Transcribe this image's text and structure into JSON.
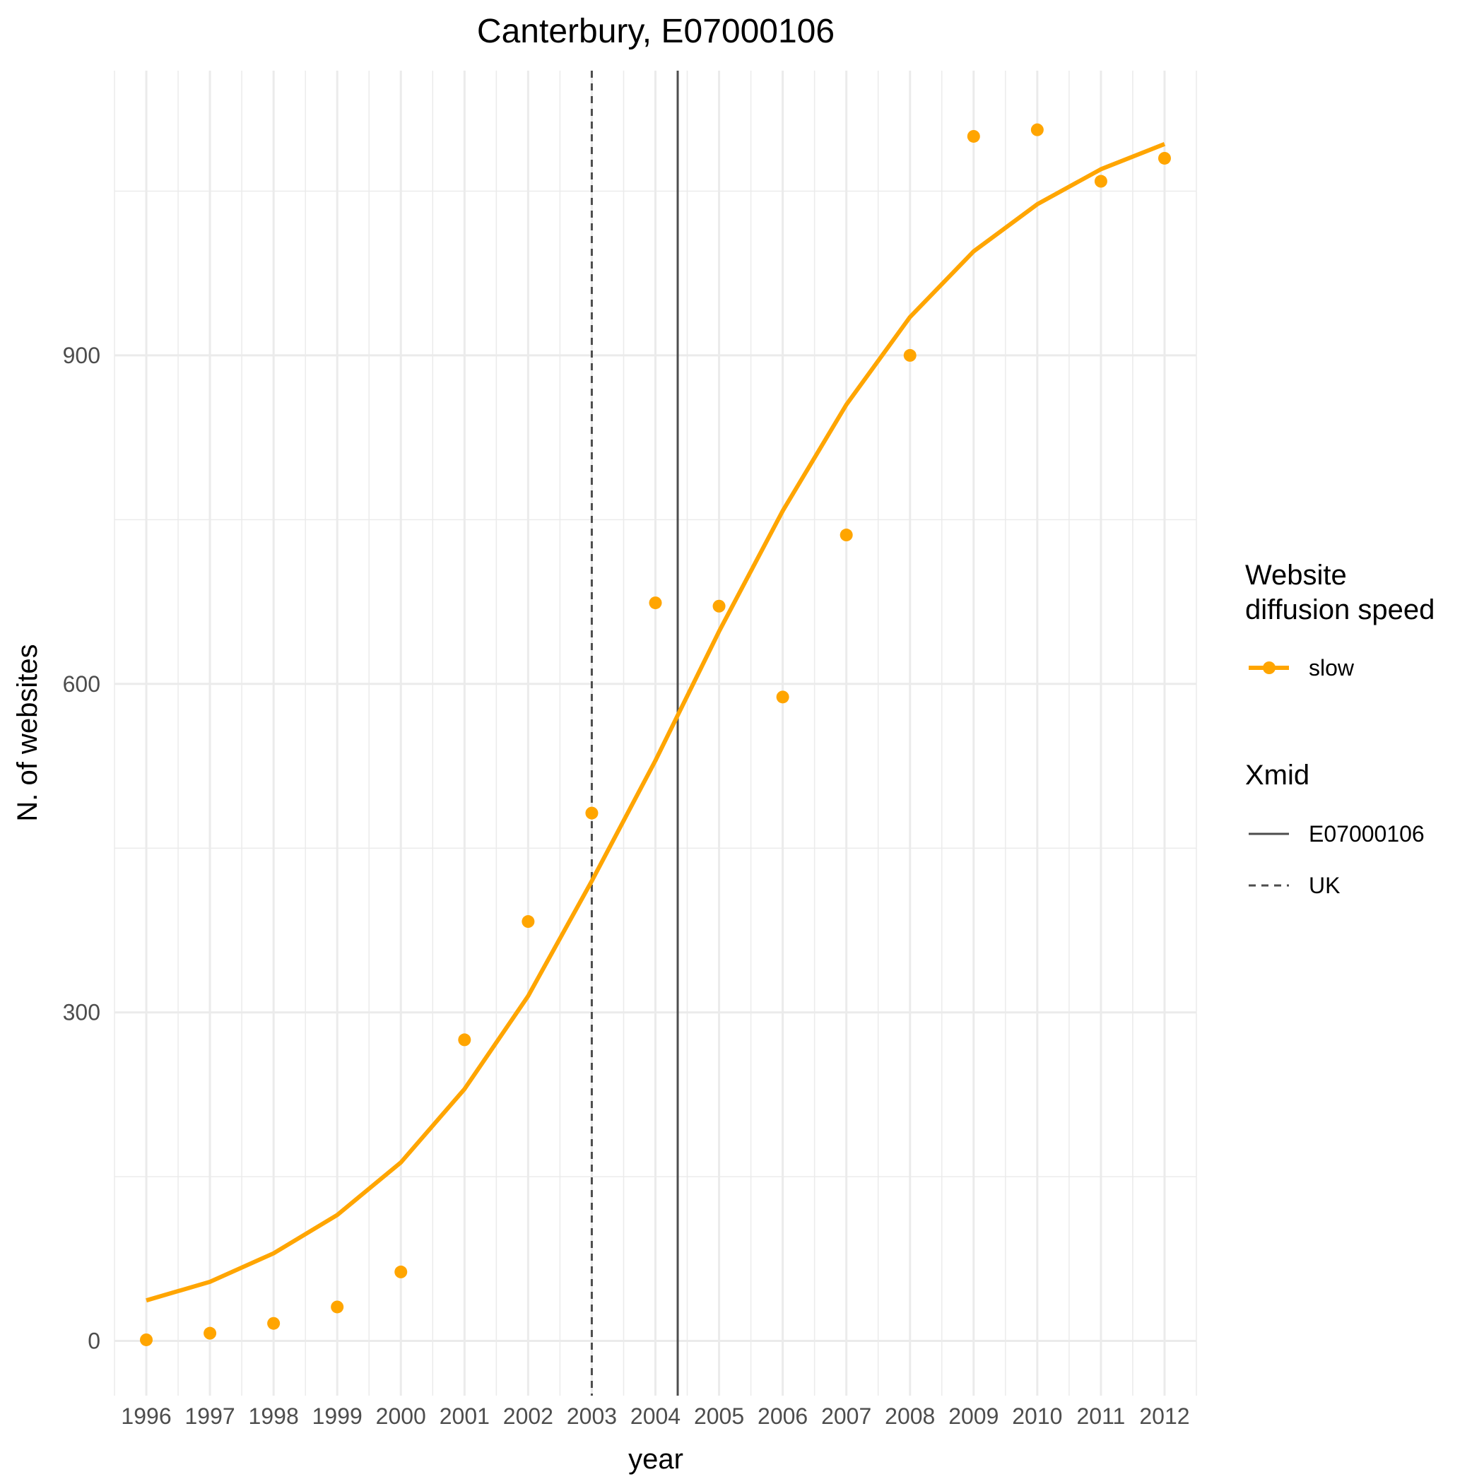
{
  "chart_data": {
    "type": "line",
    "title": "Canterbury, E07000106",
    "xlabel": "year",
    "ylabel": "N. of websites",
    "x": [
      1996,
      1997,
      1998,
      1999,
      2000,
      2001,
      2002,
      2003,
      2004,
      2005,
      2006,
      2007,
      2008,
      2009,
      2010,
      2011,
      2012
    ],
    "x_tick_labels": [
      "1996",
      "1997",
      "1998",
      "1999",
      "2000",
      "2001",
      "2002",
      "2003",
      "2004",
      "2005",
      "2006",
      "2007",
      "2008",
      "2009",
      "2010",
      "2011",
      "2012"
    ],
    "xlim": [
      1995.5,
      2012.5
    ],
    "ylim": [
      -50,
      1160
    ],
    "y_ticks": [
      0,
      300,
      600,
      900
    ],
    "y_tick_labels": [
      "0",
      "300",
      "600",
      "900"
    ],
    "grid": true,
    "series": [
      {
        "name": "slow",
        "color": "#FFA500",
        "points": [
          1,
          7,
          16,
          31,
          63,
          275,
          383,
          482,
          674,
          671,
          588,
          736,
          900,
          1100,
          1106,
          1059,
          1080
        ],
        "fitted": [
          37,
          54,
          80,
          115,
          163,
          230,
          315,
          420,
          530,
          648,
          758,
          855,
          935,
          995,
          1038,
          1070,
          1093
        ]
      }
    ],
    "vlines": [
      {
        "name": "E07000106",
        "x": 2004.35,
        "style": "solid",
        "color": "#4d4d4d"
      },
      {
        "name": "UK",
        "x": 2003.0,
        "style": "dashed",
        "color": "#4d4d4d"
      }
    ],
    "legend": {
      "placement": "right",
      "groups": [
        {
          "title_lines": [
            "Website",
            "diffusion speed"
          ],
          "entries": [
            {
              "label": "slow",
              "kind": "line-point",
              "color": "#FFA500"
            }
          ]
        },
        {
          "title_lines": [
            "Xmid"
          ],
          "entries": [
            {
              "label": "E07000106",
              "kind": "solid",
              "color": "#4d4d4d"
            },
            {
              "label": "UK",
              "kind": "dashed",
              "color": "#4d4d4d"
            }
          ]
        }
      ]
    }
  }
}
